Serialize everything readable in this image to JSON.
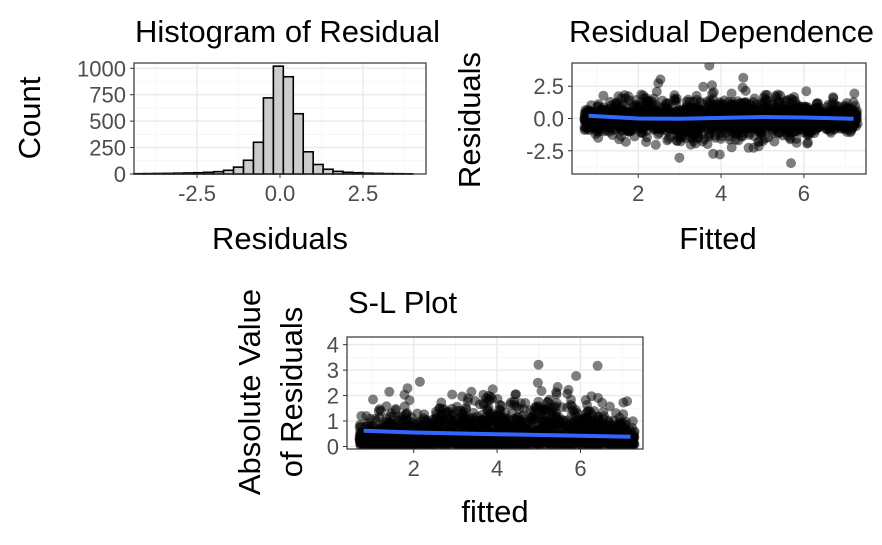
{
  "chart_data": [
    {
      "type": "bar",
      "title": "Histogram of Residuals",
      "xlabel": "Residuals",
      "ylabel": "Count",
      "xlim": [
        -4.4,
        4.4
      ],
      "ylim": [
        0,
        1050
      ],
      "xticks": [
        "-2.5",
        "0.0",
        "2.5"
      ],
      "xtick_values": [
        -2.5,
        0.0,
        2.5
      ],
      "yticks": [
        "0",
        "250",
        "500",
        "750",
        "1000"
      ],
      "ytick_values": [
        0,
        250,
        500,
        750,
        1000
      ],
      "bins": [
        -4.25,
        -3.95,
        -3.65,
        -3.35,
        -3.05,
        -2.75,
        -2.45,
        -2.15,
        -1.85,
        -1.55,
        -1.25,
        -0.95,
        -0.65,
        -0.35,
        -0.05,
        0.25,
        0.55,
        0.85,
        1.15,
        1.45,
        1.75,
        2.05,
        2.35,
        2.65,
        2.95,
        3.25,
        3.55,
        3.85
      ],
      "bin_width": 0.3,
      "values": [
        3,
        4,
        5,
        6,
        8,
        10,
        12,
        16,
        22,
        35,
        65,
        130,
        300,
        720,
        1020,
        920,
        570,
        210,
        90,
        45,
        25,
        16,
        12,
        8,
        6,
        4,
        3,
        2
      ],
      "colors": {
        "fill": "#cccccc",
        "stroke": "#000000"
      }
    },
    {
      "type": "scatter",
      "title": "Residual Dependence Plot",
      "xlabel": "Fitted",
      "ylabel": "Residuals",
      "xlim": [
        0.4,
        7.5
      ],
      "ylim": [
        -4.3,
        4.3
      ],
      "xticks": [
        "2",
        "4",
        "6"
      ],
      "xtick_values": [
        2,
        4,
        6
      ],
      "yticks": [
        "2.5",
        "0.0",
        "-2.5"
      ],
      "ytick_values": [
        2.5,
        0.0,
        -2.5
      ],
      "smooth": {
        "x": [
          0.8,
          2,
          3,
          4,
          5,
          6,
          7.2
        ],
        "y": [
          0.22,
          0.0,
          -0.02,
          0.05,
          0.12,
          0.08,
          -0.02
        ]
      },
      "colors": {
        "points": "#000000",
        "smooth": "#3366ff"
      }
    },
    {
      "type": "scatter",
      "title": "S-L Plot",
      "xlabel": "fitted",
      "ylabel": "Absolute Value\nof Residuals",
      "ylabel_lines": [
        "Absolute Value",
        "of Residuals"
      ],
      "xlim": [
        0.4,
        7.5
      ],
      "ylim": [
        -0.1,
        4.3
      ],
      "xticks": [
        "2",
        "4",
        "6"
      ],
      "xtick_values": [
        2,
        4,
        6
      ],
      "yticks": [
        "0",
        "1",
        "2",
        "3",
        "4"
      ],
      "ytick_values": [
        0,
        1,
        2,
        3,
        4
      ],
      "smooth": {
        "x": [
          0.8,
          2,
          4,
          6,
          7.2
        ],
        "y": [
          0.62,
          0.55,
          0.48,
          0.42,
          0.38
        ]
      },
      "colors": {
        "points": "#000000",
        "smooth": "#3366ff"
      }
    }
  ]
}
